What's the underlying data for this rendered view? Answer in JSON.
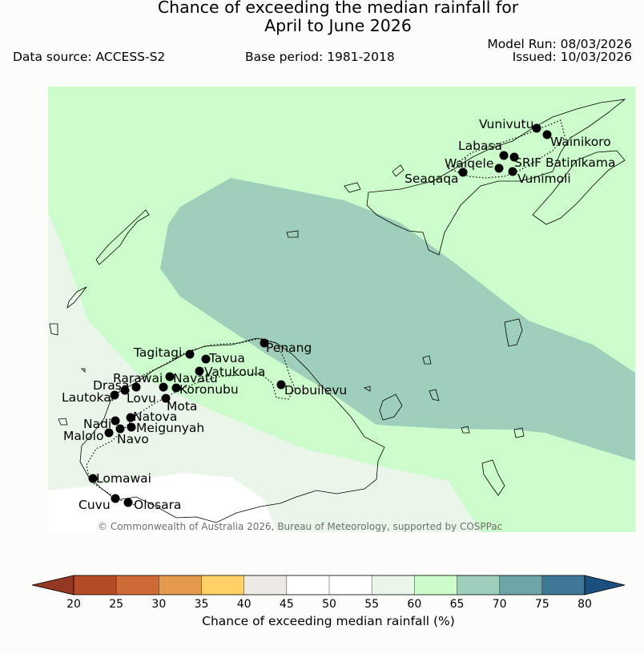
{
  "header": {
    "title_line1": "Chance of exceeding the median rainfall for",
    "title_line2": "April to June 2026",
    "data_source": "Data source: ACCESS-S2",
    "base_period": "Base period: 1981-2018",
    "model_run": "Model Run: 08/03/2026",
    "issued": "Issued: 10/03/2026"
  },
  "map": {
    "copyright": "© Commonwealth of Australia 2026, Bureau of Meteorology, supported by COSPPac",
    "stations": [
      {
        "name": "Vunivutu"
      },
      {
        "name": "Wainikoro"
      },
      {
        "name": "Labasa"
      },
      {
        "name": "Waiqele"
      },
      {
        "name": "SRIF Batinikama"
      },
      {
        "name": "Seaqaqa"
      },
      {
        "name": "Vunimoli"
      },
      {
        "name": "Tagitagi"
      },
      {
        "name": "Tavua"
      },
      {
        "name": "Penang"
      },
      {
        "name": "Vatukoula"
      },
      {
        "name": "Rarawai"
      },
      {
        "name": "Navatu"
      },
      {
        "name": "Drasa"
      },
      {
        "name": "Koronubu"
      },
      {
        "name": "Dobuilevu"
      },
      {
        "name": "Lautoka"
      },
      {
        "name": "Lovu"
      },
      {
        "name": "Mota"
      },
      {
        "name": "Natova"
      },
      {
        "name": "Nadi"
      },
      {
        "name": "Meigunyah"
      },
      {
        "name": "Malolo"
      },
      {
        "name": "Navo"
      },
      {
        "name": "Lomawai"
      },
      {
        "name": "Cuvu"
      },
      {
        "name": "Olosara"
      }
    ]
  },
  "colorbar": {
    "label": "Chance of exceeding median rainfall (%)",
    "ticks": [
      "20",
      "25",
      "30",
      "35",
      "40",
      "45",
      "50",
      "55",
      "60",
      "65",
      "70",
      "75",
      "80"
    ],
    "colors": [
      "#b54a27",
      "#cf6a34",
      "#e39a4c",
      "#fdd166",
      "#ede9e4",
      "#ffffff",
      "#ffffff",
      "#ebf6ea",
      "#ccfccb",
      "#9ecfba",
      "#6ea5a7",
      "#3f7797"
    ],
    "under_color": "#943823",
    "over_color": "#1a4f80"
  }
}
